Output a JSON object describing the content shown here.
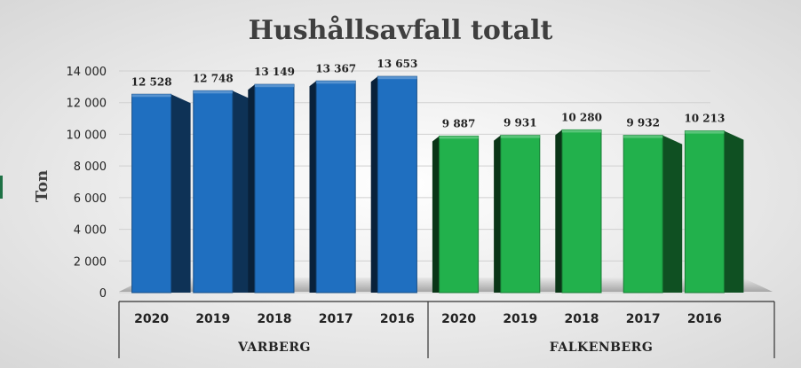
{
  "chart_data": {
    "type": "bar",
    "title": "Hushållsavfall totalt",
    "xlabel": "",
    "ylabel": "Ton",
    "ylim": [
      0,
      14000
    ],
    "yticks": [
      "0",
      "2 000",
      "4 000",
      "6 000",
      "8 000",
      "10 000",
      "12 000",
      "14 000"
    ],
    "grid": true,
    "groups": [
      {
        "name": "VARBERG",
        "color": "#1f6fc0",
        "bars": [
          {
            "category": "2020",
            "value": 12528,
            "label": "12 528"
          },
          {
            "category": "2019",
            "value": 12748,
            "label": "12 748"
          },
          {
            "category": "2018",
            "value": 13149,
            "label": "13 149"
          },
          {
            "category": "2017",
            "value": 13367,
            "label": "13 367"
          },
          {
            "category": "2016",
            "value": 13653,
            "label": "13 653"
          }
        ]
      },
      {
        "name": "FALKENBERG",
        "color": "#22b14c",
        "bars": [
          {
            "category": "2020",
            "value": 9887,
            "label": "9 887"
          },
          {
            "category": "2019",
            "value": 9931,
            "label": "9 931"
          },
          {
            "category": "2018",
            "value": 10280,
            "label": "10 280"
          },
          {
            "category": "2017",
            "value": 9932,
            "label": "9 932"
          },
          {
            "category": "2016",
            "value": 10213,
            "label": "10 213"
          }
        ]
      }
    ]
  }
}
